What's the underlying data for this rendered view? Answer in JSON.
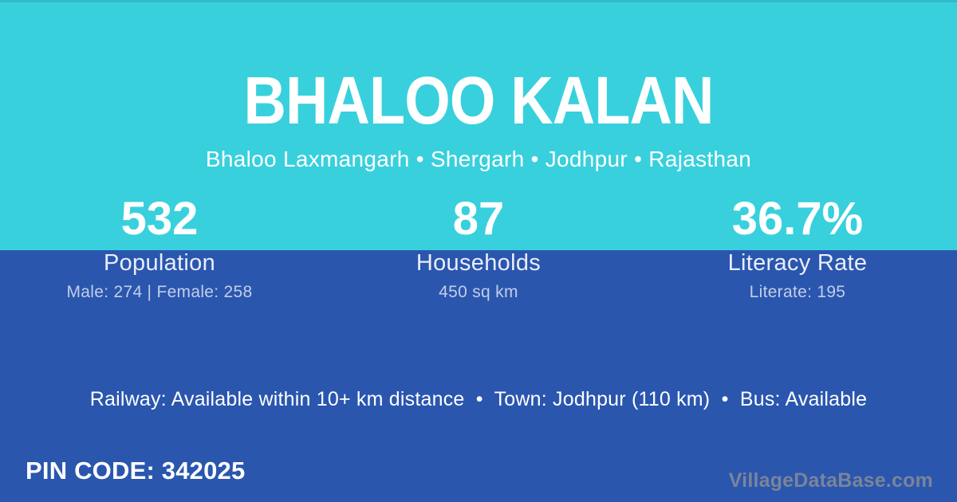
{
  "header": {
    "title": "BHALOO KALAN",
    "breadcrumb": "Bhaloo Laxmangarh • Shergarh • Jodhpur • Rajasthan"
  },
  "stats": [
    {
      "value": "532",
      "label": "Population",
      "detail": "Male: 274 | Female: 258"
    },
    {
      "value": "87",
      "label": "Households",
      "detail": "450 sq km"
    },
    {
      "value": "36.7%",
      "label": "Literacy Rate",
      "detail": "Literate: 195"
    }
  ],
  "transport": {
    "line": "Railway: Available within 10+ km distance  •  Town: Jodhpur (110 km)  •  Bus: Available"
  },
  "footer": {
    "pin_code": "PIN CODE: 342025",
    "watermark": "VillageDataBase.com"
  },
  "colors": {
    "top_background": "#38d0dd",
    "bottom_background": "#2a56ae",
    "primary_text": "#ffffff",
    "label_text": "#e9edf9",
    "detail_text": "#c3cee9",
    "watermark_text": "#7b8499"
  }
}
